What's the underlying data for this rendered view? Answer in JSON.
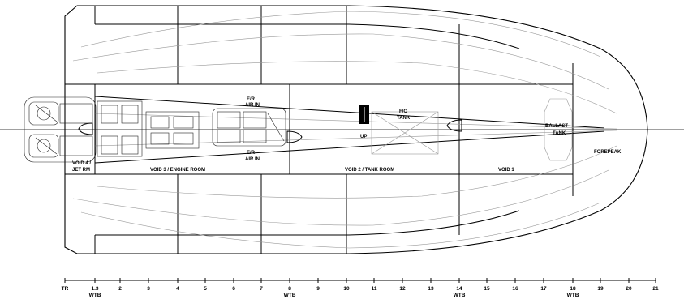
{
  "labels": {
    "er_air_in_top_1": "E/R",
    "er_air_in_top_2": "AIR IN",
    "er_air_in_bot_1": "E/R",
    "er_air_in_bot_2": "AIR IN",
    "fo_tank_1": "F/O",
    "fo_tank_2": "TANK",
    "up": "UP",
    "ballast_1": "BALLAST",
    "ballast_2": "TANK",
    "forepeak": "FOREPEAK",
    "void4_1": "VOID 4 /",
    "void4_2": "JET RM",
    "void3": "VOID 3 / ENGINE ROOM",
    "void2": "VOID 2 / TANK ROOM",
    "void1": "VOID 1"
  },
  "scale": {
    "ticks": [
      "TR",
      "1.3",
      "2",
      "3",
      "4",
      "5",
      "6",
      "7",
      "8",
      "9",
      "10",
      "11",
      "12",
      "13",
      "14",
      "15",
      "16",
      "17",
      "18",
      "19",
      "20",
      "21"
    ],
    "wtb_label": "WTB",
    "wtb_frames": [
      "1.3",
      "8",
      "14",
      "18"
    ]
  }
}
